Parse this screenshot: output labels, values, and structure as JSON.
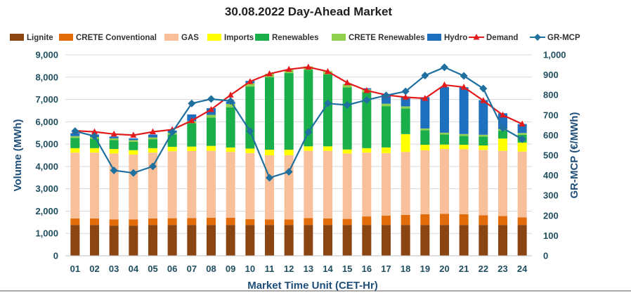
{
  "chart_data": {
    "type": "bar",
    "title": "30.08.2022  Day-Ahead Market",
    "xlabel": "Market Time Unit (CET-Hr)",
    "ylabel": "Volume (MWh)",
    "y2label": "GR-MCP (€/MWh)",
    "ylim": [
      0,
      9000
    ],
    "y2lim": [
      0,
      1000
    ],
    "yticks": [
      "0",
      "1,000",
      "2,000",
      "3,000",
      "4,000",
      "5,000",
      "6,000",
      "7,000",
      "8,000",
      "9,000"
    ],
    "y2ticks": [
      "0",
      "100",
      "200",
      "300",
      "400",
      "500",
      "600",
      "700",
      "800",
      "900",
      "1,000"
    ],
    "categories": [
      "01",
      "02",
      "03",
      "04",
      "05",
      "06",
      "07",
      "08",
      "09",
      "10",
      "11",
      "12",
      "13",
      "14",
      "15",
      "16",
      "17",
      "18",
      "19",
      "20",
      "21",
      "22",
      "23",
      "24"
    ],
    "series": [
      {
        "name": "Lignite",
        "kind": "bar",
        "color": "#8b4513",
        "values": [
          1380,
          1380,
          1350,
          1350,
          1380,
          1380,
          1380,
          1380,
          1380,
          1380,
          1380,
          1380,
          1380,
          1380,
          1380,
          1380,
          1380,
          1380,
          1380,
          1380,
          1380,
          1380,
          1380,
          1380
        ]
      },
      {
        "name": "CRETE Conventional",
        "kind": "bar",
        "color": "#e36c0a",
        "values": [
          290,
          290,
          280,
          280,
          290,
          300,
          310,
          320,
          320,
          260,
          250,
          250,
          310,
          290,
          270,
          380,
          420,
          450,
          480,
          500,
          480,
          430,
          400,
          340
        ]
      },
      {
        "name": "GAS",
        "kind": "bar",
        "color": "#f8c09a",
        "values": [
          2950,
          2950,
          2950,
          2900,
          2950,
          3000,
          3000,
          3000,
          2950,
          2960,
          2870,
          2870,
          3010,
          3030,
          2930,
          2860,
          2800,
          2820,
          2860,
          2900,
          2910,
          2930,
          2920,
          2950
        ]
      },
      {
        "name": "Imports",
        "kind": "bar",
        "color": "#ffff00",
        "values": [
          200,
          200,
          200,
          200,
          200,
          200,
          200,
          220,
          200,
          200,
          250,
          250,
          200,
          200,
          180,
          200,
          250,
          800,
          250,
          200,
          200,
          200,
          550,
          400
        ]
      },
      {
        "name": "Renewables",
        "kind": "bar",
        "color": "#1aaf4b",
        "values": [
          460,
          420,
          400,
          370,
          400,
          550,
          1050,
          1270,
          1800,
          2780,
          3250,
          3430,
          3430,
          3220,
          2780,
          2500,
          1850,
          1150,
          650,
          450,
          400,
          400,
          350,
          350
        ]
      },
      {
        "name": "CRETE Renewables",
        "kind": "bar",
        "color": "#92d050",
        "values": [
          80,
          80,
          80,
          80,
          80,
          80,
          90,
          120,
          150,
          150,
          150,
          160,
          150,
          150,
          150,
          130,
          110,
          90,
          80,
          80,
          80,
          80,
          80,
          80
        ]
      },
      {
        "name": "Hydro",
        "kind": "bar",
        "color": "#1f6fbf",
        "values": [
          130,
          110,
          80,
          80,
          130,
          100,
          300,
          300,
          100,
          100,
          0,
          0,
          0,
          0,
          0,
          50,
          400,
          400,
          1400,
          2050,
          2100,
          1550,
          700,
          400
        ]
      },
      {
        "name": "Demand",
        "kind": "line",
        "axis": "left",
        "color": "#e31a1c",
        "values": [
          5600,
          5550,
          5450,
          5400,
          5550,
          5650,
          6050,
          6550,
          7200,
          7800,
          8150,
          8350,
          8450,
          8250,
          7750,
          7400,
          7200,
          7100,
          7050,
          7650,
          7550,
          6950,
          6300,
          5900
        ]
      },
      {
        "name": "GR-MCP",
        "kind": "line",
        "axis": "right",
        "color": "#1f6f9f",
        "values": [
          620,
          595,
          425,
          412,
          445,
          615,
          758,
          780,
          770,
          620,
          388,
          418,
          615,
          758,
          750,
          775,
          798,
          818,
          897,
          938,
          895,
          832,
          635,
          580
        ]
      }
    ]
  }
}
